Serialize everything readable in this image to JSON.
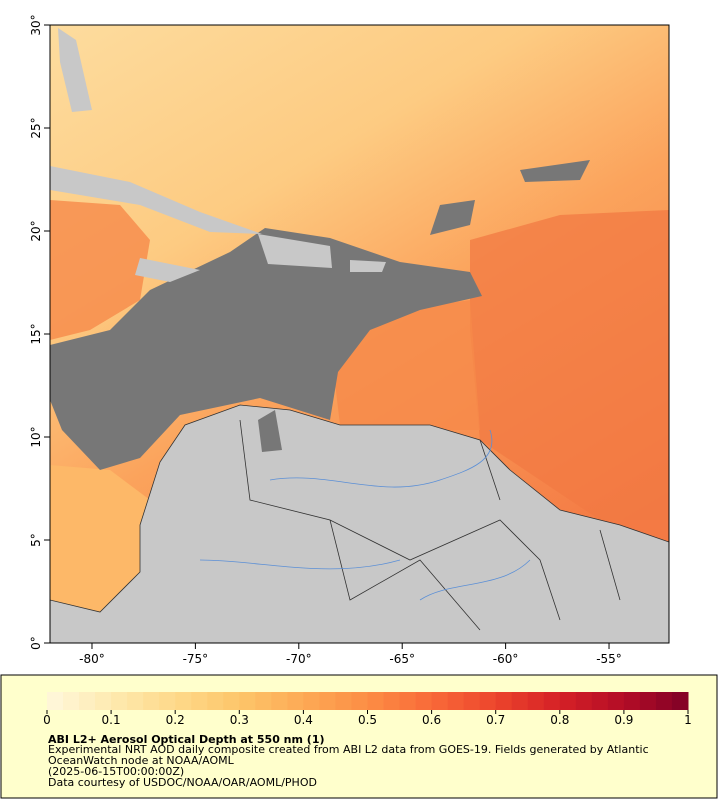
{
  "map": {
    "xlim": [
      -82.03,
      -52.1
    ],
    "ylim": [
      0,
      30
    ],
    "xticks": [
      {
        "value": -80,
        "label": "-80°"
      },
      {
        "value": -75,
        "label": "-75°"
      },
      {
        "value": -70,
        "label": "-70°"
      },
      {
        "value": -65,
        "label": "-65°"
      },
      {
        "value": -60,
        "label": "-60°"
      },
      {
        "value": -55,
        "label": "-55°"
      }
    ],
    "yticks": [
      {
        "value": 0,
        "label": "0°"
      },
      {
        "value": 5,
        "label": "5°"
      },
      {
        "value": 10,
        "label": "10°"
      },
      {
        "value": 15,
        "label": "15°"
      },
      {
        "value": 20,
        "label": "20°"
      },
      {
        "value": 25,
        "label": "25°"
      },
      {
        "value": 30,
        "label": "30°"
      }
    ]
  },
  "colorbar": {
    "range": [
      0,
      1
    ],
    "ticks": [
      0,
      0.1,
      0.2,
      0.3,
      0.4,
      0.5,
      0.6,
      0.7,
      0.8,
      0.9,
      1
    ],
    "colors": [
      "#fff8dc",
      "#feeab0",
      "#fed98a",
      "#fdc56a",
      "#fdaa55",
      "#fc8d45",
      "#f86a38",
      "#ec452c",
      "#d52026",
      "#b30d26",
      "#800026"
    ]
  },
  "caption": {
    "title": "ABI L2+ Aerosol Optical Depth at 550 nm (1)",
    "lines": [
      "Experimental NRT AOD daily composite created from ABI L2 data from GOES-19. Fields generated by Atlantic",
      "OceanWatch node at NOAA/AOML",
      "(2025-06-15T00:00:00Z)",
      "Data courtesy of USDOC/NOAA/OAR/AOML/PHOD"
    ]
  }
}
